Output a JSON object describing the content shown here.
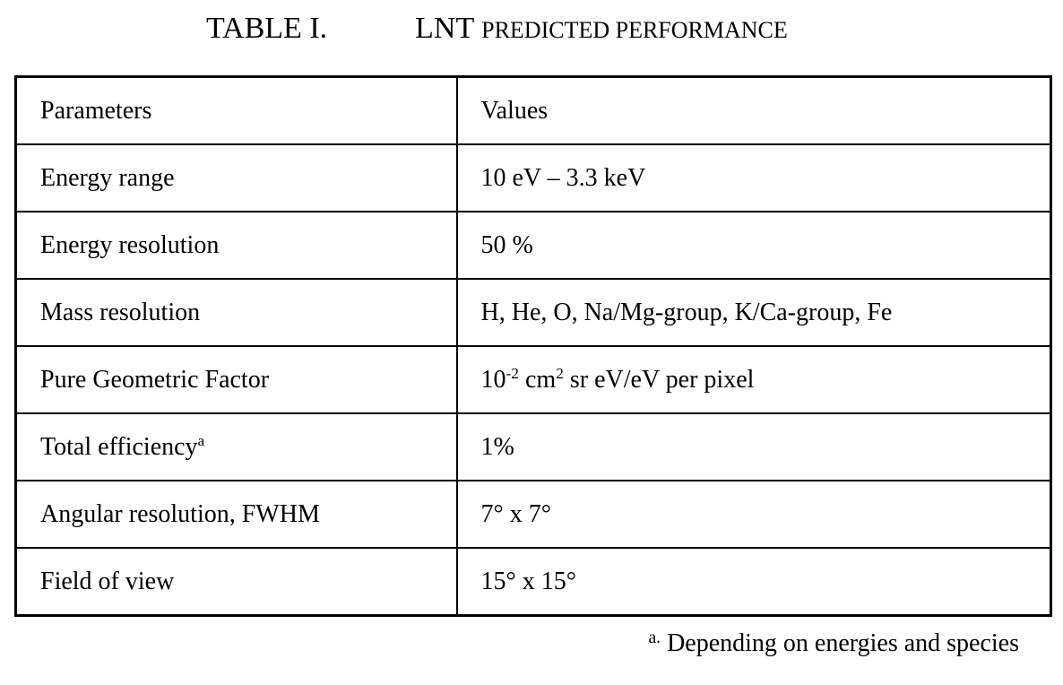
{
  "caption": {
    "label": "TABLE I.",
    "title_main": "LNT",
    "title_rest": "PREDICTED PERFORMANCE"
  },
  "table": {
    "header": {
      "param": "Parameters",
      "value": "Values"
    },
    "rows": [
      {
        "param": "Energy range",
        "value": "10 eV – 3.3 keV"
      },
      {
        "param": "Energy resolution",
        "value": "50 %"
      },
      {
        "param": "Mass resolution",
        "value": "H, He, O, Na/Mg-group, K/Ca-group, Fe"
      },
      {
        "param": "Pure Geometric Factor",
        "value_segments": [
          {
            "text": "10"
          },
          {
            "text": "-2",
            "sup": true
          },
          {
            "text": " cm"
          },
          {
            "text": "2",
            "sup": true
          },
          {
            "text": " sr eV/eV per pixel"
          }
        ]
      },
      {
        "param": "Total efficiency",
        "param_sup": "a",
        "value": "1%"
      },
      {
        "param": "Angular resolution, FWHM",
        "value": "7° x 7°"
      },
      {
        "param": "Field of view",
        "value": "15° x 15°"
      }
    ]
  },
  "footnote": {
    "marker": "a.",
    "text": "Depending on energies and species"
  }
}
